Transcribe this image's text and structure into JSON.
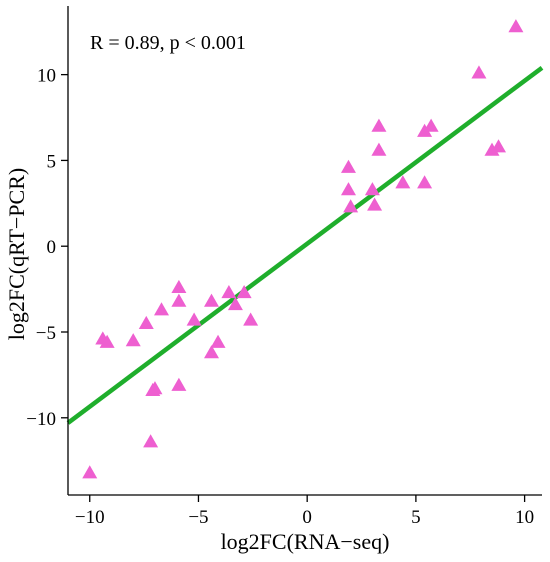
{
  "chart_data": {
    "type": "scatter",
    "title": "",
    "xlabel": "log2FC(RNA−seq)",
    "ylabel": "log2FC(qRT−PCR)",
    "xlim": [
      -11,
      10.8
    ],
    "ylim": [
      -14.5,
      14
    ],
    "xticks": [
      -10,
      -5,
      0,
      5,
      10
    ],
    "yticks": [
      -10,
      -5,
      0,
      5,
      10
    ],
    "xtick_labels": [
      "−10",
      "−5",
      "0",
      "5",
      "10"
    ],
    "ytick_labels": [
      "−10",
      "−5",
      "0",
      "5",
      "10"
    ],
    "grid": false,
    "annotation": "R = 0.89, p < 0.001",
    "marker": "triangle",
    "colors": {
      "points": "#ee5fd0",
      "fit_line": "#1fae2c",
      "axis": "#000000"
    },
    "points": [
      {
        "x": -10.0,
        "y": -13.2
      },
      {
        "x": -9.4,
        "y": -5.4
      },
      {
        "x": -9.2,
        "y": -5.6
      },
      {
        "x": -8.0,
        "y": -5.5
      },
      {
        "x": -7.4,
        "y": -4.5
      },
      {
        "x": -7.2,
        "y": -11.4
      },
      {
        "x": -7.1,
        "y": -8.4
      },
      {
        "x": -7.0,
        "y": -8.3
      },
      {
        "x": -6.7,
        "y": -3.7
      },
      {
        "x": -5.9,
        "y": -2.4
      },
      {
        "x": -5.9,
        "y": -3.2
      },
      {
        "x": -5.9,
        "y": -8.1
      },
      {
        "x": -5.2,
        "y": -4.3
      },
      {
        "x": -4.4,
        "y": -3.2
      },
      {
        "x": -4.4,
        "y": -6.2
      },
      {
        "x": -4.1,
        "y": -5.6
      },
      {
        "x": -3.6,
        "y": -2.7
      },
      {
        "x": -3.3,
        "y": -3.4
      },
      {
        "x": -2.9,
        "y": -2.7
      },
      {
        "x": -2.6,
        "y": -4.3
      },
      {
        "x": 1.9,
        "y": 4.6
      },
      {
        "x": 1.9,
        "y": 3.3
      },
      {
        "x": 2.0,
        "y": 2.3
      },
      {
        "x": 3.0,
        "y": 3.3
      },
      {
        "x": 3.1,
        "y": 2.4
      },
      {
        "x": 3.3,
        "y": 7.0
      },
      {
        "x": 3.3,
        "y": 5.6
      },
      {
        "x": 4.4,
        "y": 3.7
      },
      {
        "x": 5.4,
        "y": 6.7
      },
      {
        "x": 5.4,
        "y": 3.7
      },
      {
        "x": 5.7,
        "y": 7.0
      },
      {
        "x": 7.9,
        "y": 10.1
      },
      {
        "x": 8.5,
        "y": 5.6
      },
      {
        "x": 8.8,
        "y": 5.8
      },
      {
        "x": 9.6,
        "y": 12.8
      }
    ],
    "fit_line": {
      "x": [
        -11,
        10.8
      ],
      "y": [
        -10.3,
        10.4
      ]
    }
  }
}
